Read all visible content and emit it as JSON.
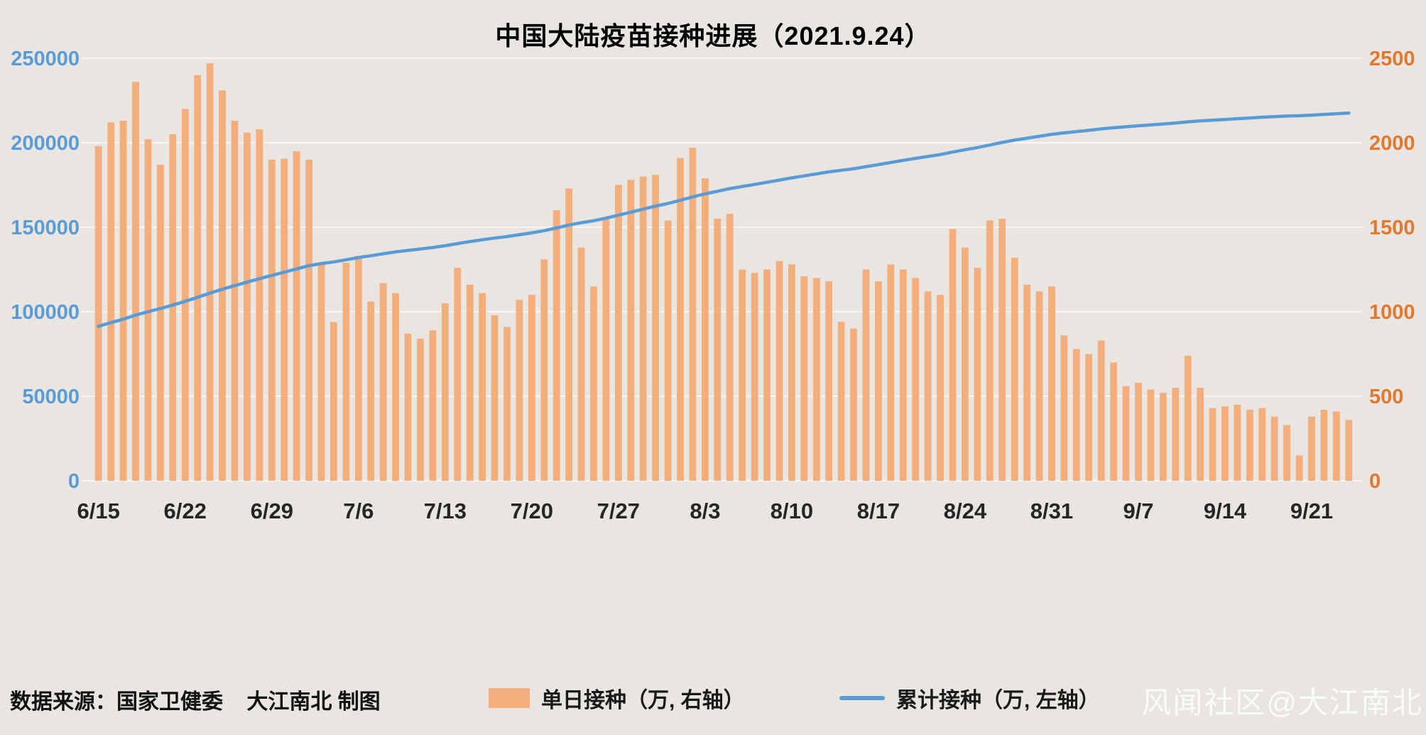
{
  "title": "中国大陆疫苗接种进展（2021.9.24）",
  "watermark": "风闻社区@大江南北",
  "footer": {
    "source": "数据来源：国家卫健委    大江南北 制图",
    "legend": [
      {
        "label": "单日接种（万, 右轴）",
        "type": "bar",
        "color": "#F3AE7C"
      },
      {
        "label": "累计接种（万, 左轴）",
        "type": "line",
        "color": "#5B9BD5"
      }
    ]
  },
  "chart_data": {
    "type": "bar+line",
    "title": "中国大陆疫苗接种进展（2021.9.24）",
    "date_start": "6/15",
    "date_end": "9/24",
    "dates": [
      "6/15",
      "6/16",
      "6/17",
      "6/18",
      "6/19",
      "6/20",
      "6/21",
      "6/22",
      "6/23",
      "6/24",
      "6/25",
      "6/26",
      "6/27",
      "6/28",
      "6/29",
      "6/30",
      "7/1",
      "7/2",
      "7/3",
      "7/4",
      "7/5",
      "7/6",
      "7/7",
      "7/8",
      "7/9",
      "7/10",
      "7/11",
      "7/12",
      "7/13",
      "7/14",
      "7/15",
      "7/16",
      "7/17",
      "7/18",
      "7/19",
      "7/20",
      "7/21",
      "7/22",
      "7/23",
      "7/24",
      "7/25",
      "7/26",
      "7/27",
      "7/28",
      "7/29",
      "7/30",
      "7/31",
      "8/1",
      "8/2",
      "8/3",
      "8/4",
      "8/5",
      "8/6",
      "8/7",
      "8/8",
      "8/9",
      "8/10",
      "8/11",
      "8/12",
      "8/13",
      "8/14",
      "8/15",
      "8/16",
      "8/17",
      "8/18",
      "8/19",
      "8/20",
      "8/21",
      "8/22",
      "8/23",
      "8/24",
      "8/25",
      "8/26",
      "8/27",
      "8/28",
      "8/29",
      "8/30",
      "8/31",
      "9/1",
      "9/2",
      "9/3",
      "9/4",
      "9/5",
      "9/6",
      "9/7",
      "9/8",
      "9/9",
      "9/10",
      "9/11",
      "9/12",
      "9/13",
      "9/14",
      "9/15",
      "9/16",
      "9/17",
      "9/18",
      "9/19",
      "9/20",
      "9/21",
      "9/22",
      "9/23",
      "9/24"
    ],
    "x_ticks": {
      "indices": [
        0,
        7,
        14,
        21,
        28,
        35,
        42,
        49,
        56,
        63,
        70,
        77,
        84,
        91,
        98
      ],
      "labels": [
        "6/15",
        "6/22",
        "6/29",
        "7/6",
        "7/13",
        "7/20",
        "7/27",
        "8/3",
        "8/10",
        "8/17",
        "8/24",
        "8/31",
        "9/7",
        "9/14",
        "9/21"
      ]
    },
    "left_axis": {
      "max": 250000,
      "ticks": [
        0,
        50000,
        100000,
        150000,
        200000,
        250000
      ]
    },
    "right_axis": {
      "max": 2500,
      "ticks": [
        0,
        500,
        1000,
        1500,
        2000,
        2500
      ]
    },
    "series": [
      {
        "name": "单日接种（万, 右轴）",
        "type": "bar",
        "axis": "right",
        "color": "#F3AE7C",
        "values": [
          1980,
          2120,
          2130,
          2360,
          2020,
          1870,
          2050,
          2200,
          2400,
          2470,
          2310,
          2130,
          2060,
          2080,
          1900,
          1905,
          1950,
          1900,
          1280,
          940,
          1290,
          1330,
          1060,
          1170,
          1110,
          870,
          840,
          890,
          1050,
          1260,
          1160,
          1110,
          980,
          910,
          1070,
          1100,
          1310,
          1600,
          1730,
          1380,
          1150,
          1550,
          1750,
          1780,
          1800,
          1810,
          1540,
          1910,
          1970,
          1790,
          1550,
          1580,
          1250,
          1230,
          1250,
          1300,
          1280,
          1210,
          1200,
          1180,
          940,
          900,
          1250,
          1180,
          1280,
          1250,
          1200,
          1120,
          1100,
          1490,
          1380,
          1260,
          1540,
          1550,
          1320,
          1160,
          1120,
          1150,
          860,
          780,
          750,
          830,
          700,
          560,
          580,
          540,
          520,
          550,
          740,
          550,
          430,
          440,
          450,
          420,
          430,
          380,
          330,
          150,
          380,
          420,
          410,
          360
        ]
      },
      {
        "name": "累计接种（万, 左轴）",
        "type": "line",
        "axis": "left",
        "color": "#5B9BD5",
        "start_value": 91400,
        "note": "cumulative running sum of daily values, starting at start_value on 6/15, ending near 219500 on 9/24"
      }
    ],
    "grid": true,
    "legend_position": "bottom",
    "colors": {
      "background": "#E9E6E2",
      "bar": "#F3AE7C",
      "line": "#5B9BD5",
      "left_axis_labels": "#5B9BD5",
      "right_axis_labels": "#E2772E",
      "x_labels": "#262626",
      "gridline": "#FFFFFF"
    }
  }
}
